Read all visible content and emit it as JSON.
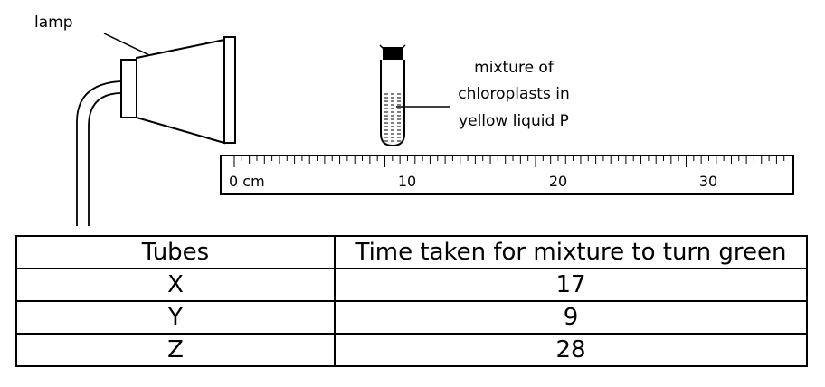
{
  "labels": {
    "lamp": "lamp",
    "mixture": [
      "mixture of",
      "chloroplasts in",
      "yellow liquid P"
    ]
  },
  "ruler": {
    "unit_label": "0 cm",
    "ticks": [
      10,
      20,
      30
    ]
  },
  "table": {
    "headers": [
      "Tubes",
      "Time taken for mixture to turn green"
    ],
    "rows": [
      {
        "tube": "X",
        "time": "17"
      },
      {
        "tube": "Y",
        "time": "9"
      },
      {
        "tube": "Z",
        "time": "28"
      }
    ]
  }
}
